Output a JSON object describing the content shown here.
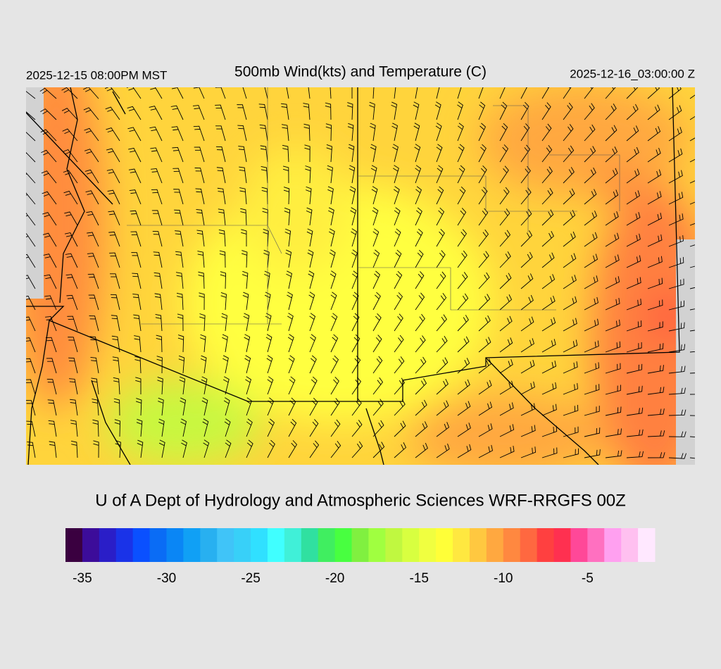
{
  "header": {
    "left": "2025-12-15 08:00PM MST",
    "title": "500mb Wind(kts) and Temperature (C)",
    "right": "2025-12-16_03:00:00 Z"
  },
  "credit": "U of A Dept of Hydrology and Atmospheric Sciences WRF-RRGFS 00Z",
  "colorbar": {
    "min": -36,
    "max": -1,
    "colors": [
      "#3a0040",
      "#3c0c9a",
      "#2a1ec8",
      "#1a33e8",
      "#0a50ff",
      "#0a6cf5",
      "#0a86f5",
      "#10a0f5",
      "#28b0f0",
      "#40c4f8",
      "#38d0f8",
      "#30e0ff",
      "#40ffff",
      "#40f0d8",
      "#30e0a0",
      "#40ee60",
      "#48ff40",
      "#80f040",
      "#a0ff40",
      "#c0f840",
      "#d8ff40",
      "#f0ff40",
      "#ffff38",
      "#ffe840",
      "#ffc840",
      "#ffa840",
      "#ff8840",
      "#ff6840",
      "#ff4040",
      "#ff3050",
      "#ff4898",
      "#ff70c0",
      "#ffa0f0",
      "#ffc0f0",
      "#ffe8ff"
    ],
    "ticks": [
      -35,
      -30,
      -25,
      -20,
      -15,
      -10,
      -5
    ]
  }
}
